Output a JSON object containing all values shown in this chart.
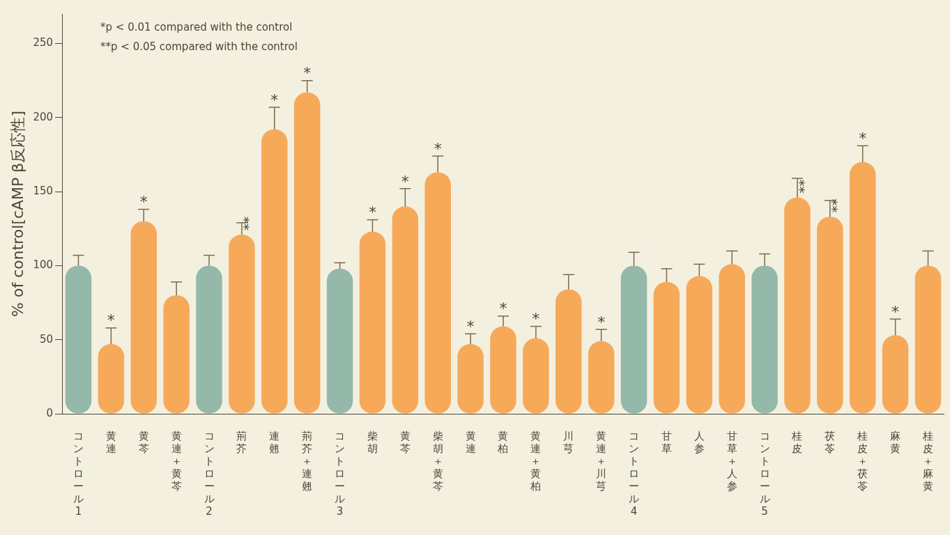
{
  "chart_data": {
    "type": "bar",
    "ylabel": "% of control[cAMP β反応性]",
    "categories": [
      "コントロール1",
      "黄連",
      "黄芩",
      "黄連＋黄芩",
      "コントロール2",
      "荊芥",
      "連翹",
      "荊芥＋連翹",
      "コントロール3",
      "柴胡",
      "黄芩",
      "柴胡＋黄芩",
      "黄連",
      "黄柏",
      "黄連＋黄柏",
      "川芎",
      "黄連＋川芎",
      "コントロール4",
      "甘草",
      "人参",
      "甘草＋人参",
      "コントロール5",
      "桂皮",
      "茯苓",
      "桂皮＋茯苓",
      "麻黄",
      "桂皮＋麻黄"
    ],
    "values": [
      100,
      47,
      130,
      80,
      100,
      121,
      192,
      217,
      98,
      123,
      140,
      163,
      47,
      59,
      51,
      84,
      49,
      100,
      89,
      93,
      101,
      100,
      146,
      133,
      170,
      53,
      100
    ],
    "errors": [
      [
        100,
        107
      ],
      [
        47,
        58
      ],
      [
        130,
        138
      ],
      [
        80,
        89
      ],
      [
        100,
        107
      ],
      [
        121,
        129
      ],
      [
        192,
        207
      ],
      [
        217,
        225
      ],
      [
        98,
        102
      ],
      [
        123,
        131
      ],
      [
        140,
        152
      ],
      [
        163,
        174
      ],
      [
        47,
        54
      ],
      [
        59,
        66
      ],
      [
        51,
        59
      ],
      [
        84,
        94
      ],
      [
        49,
        57
      ],
      [
        100,
        109
      ],
      [
        89,
        98
      ],
      [
        93,
        101
      ],
      [
        101,
        110
      ],
      [
        100,
        108
      ],
      [
        146,
        159
      ],
      [
        133,
        144
      ],
      [
        170,
        181
      ],
      [
        53,
        64
      ],
      [
        100,
        110
      ]
    ],
    "colors": [
      "#94b8aa",
      "#f7a95a",
      "#f7a95a",
      "#f7a95a",
      "#94b8aa",
      "#f7a95a",
      "#f7a95a",
      "#f7a95a",
      "#94b8aa",
      "#f7a95a",
      "#f7a95a",
      "#f7a95a",
      "#f7a95a",
      "#f7a95a",
      "#f7a95a",
      "#f7a95a",
      "#f7a95a",
      "#94b8aa",
      "#f7a95a",
      "#f7a95a",
      "#f7a95a",
      "#94b8aa",
      "#f7a95a",
      "#f7a95a",
      "#f7a95a",
      "#f7a95a",
      "#f7a95a"
    ],
    "ylim": [
      0,
      270
    ],
    "yticks": [
      0,
      50,
      100,
      150,
      200,
      250
    ],
    "grid": false,
    "legend": false,
    "value_labels": [
      null,
      "*",
      "*",
      null,
      null,
      "**",
      "*",
      "*",
      null,
      "*",
      "*",
      "*",
      "*",
      "*",
      "*",
      null,
      "*",
      null,
      null,
      null,
      null,
      null,
      "**",
      "**",
      "*",
      "*",
      null
    ],
    "annotations": [
      "*p < 0.01 compared with the control",
      "**p < 0.05 compared with the control"
    ]
  }
}
